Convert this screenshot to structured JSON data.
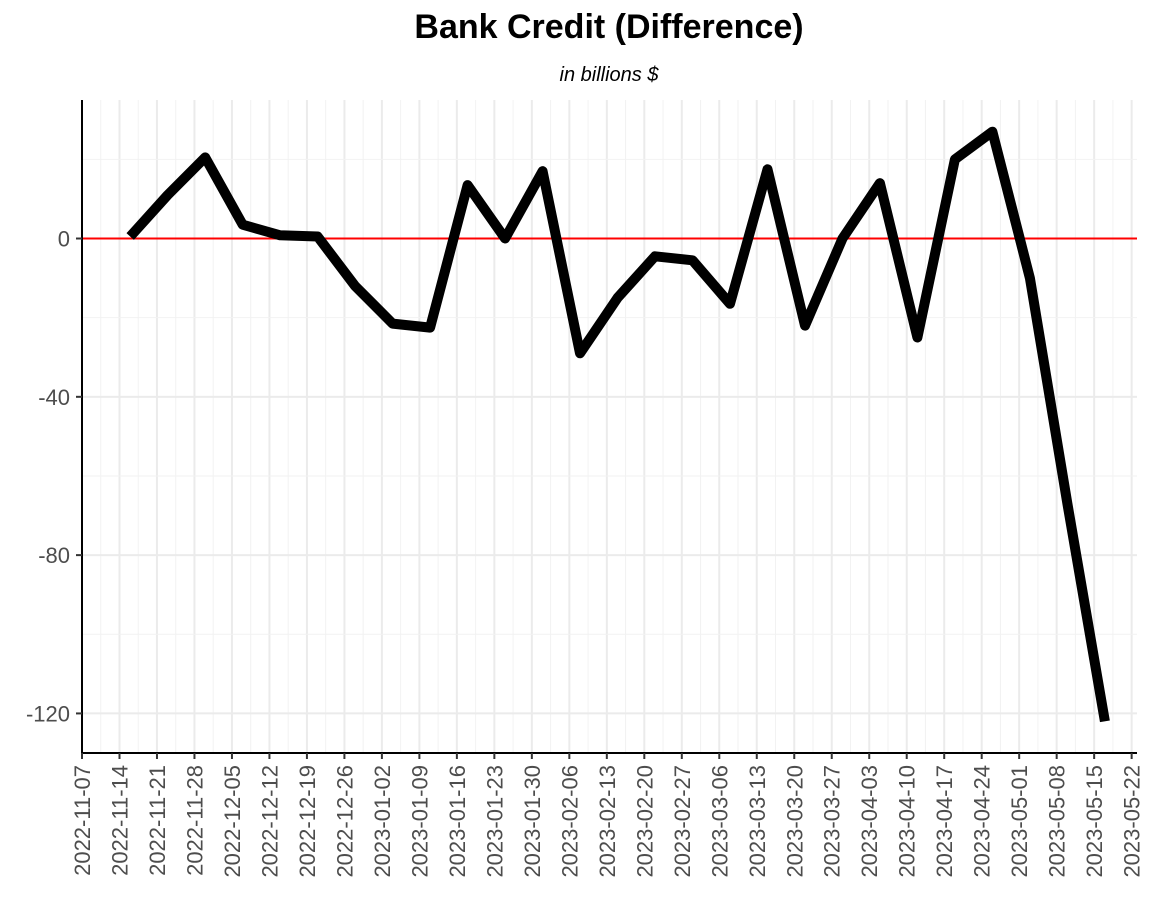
{
  "chart_data": {
    "type": "line",
    "title": "Bank Credit (Difference)",
    "subtitle": "in billions $",
    "xlabel": "",
    "ylabel": "",
    "x_ticks": [
      "2022-11-07",
      "2022-11-14",
      "2022-11-21",
      "2022-11-28",
      "2022-12-05",
      "2022-12-12",
      "2022-12-19",
      "2022-12-26",
      "2023-01-02",
      "2023-01-09",
      "2023-01-16",
      "2023-01-23",
      "2023-01-30",
      "2023-02-06",
      "2023-02-13",
      "2023-02-20",
      "2023-02-27",
      "2023-03-06",
      "2023-03-13",
      "2023-03-20",
      "2023-03-27",
      "2023-04-03",
      "2023-04-10",
      "2023-04-17",
      "2023-04-24",
      "2023-05-01",
      "2023-05-08",
      "2023-05-15",
      "2023-05-22"
    ],
    "y_ticks": [
      0,
      -40,
      -80,
      -120
    ],
    "ylim": [
      -130,
      35
    ],
    "xlim": [
      "2022-11-07",
      "2023-05-23"
    ],
    "grid": true,
    "reference_line": {
      "y": 0,
      "color": "#ff0000"
    },
    "series": [
      {
        "color": "#000000",
        "points": [
          [
            "2022-11-16",
            0.5
          ],
          [
            "2022-11-23",
            11
          ],
          [
            "2022-11-30",
            20.5
          ],
          [
            "2022-12-07",
            3.5
          ],
          [
            "2022-12-14",
            0.8
          ],
          [
            "2022-12-21",
            0.5
          ],
          [
            "2022-12-28",
            -12
          ],
          [
            "2023-01-04",
            -21.5
          ],
          [
            "2023-01-11",
            -22.5
          ],
          [
            "2023-01-18",
            13.5
          ],
          [
            "2023-01-25",
            0
          ],
          [
            "2023-02-01",
            17
          ],
          [
            "2023-02-08",
            -29
          ],
          [
            "2023-02-15",
            -15
          ],
          [
            "2023-02-22",
            -4.5
          ],
          [
            "2023-03-01",
            -5.5
          ],
          [
            "2023-03-08",
            -16.5
          ],
          [
            "2023-03-15",
            17.5
          ],
          [
            "2023-03-22",
            -22
          ],
          [
            "2023-03-29",
            0
          ],
          [
            "2023-04-05",
            14
          ],
          [
            "2023-04-12",
            -25
          ],
          [
            "2023-04-19",
            20
          ],
          [
            "2023-04-26",
            27
          ],
          [
            "2023-05-03",
            -10
          ],
          [
            "2023-05-10",
            -67
          ],
          [
            "2023-05-17",
            -122
          ]
        ]
      }
    ]
  }
}
